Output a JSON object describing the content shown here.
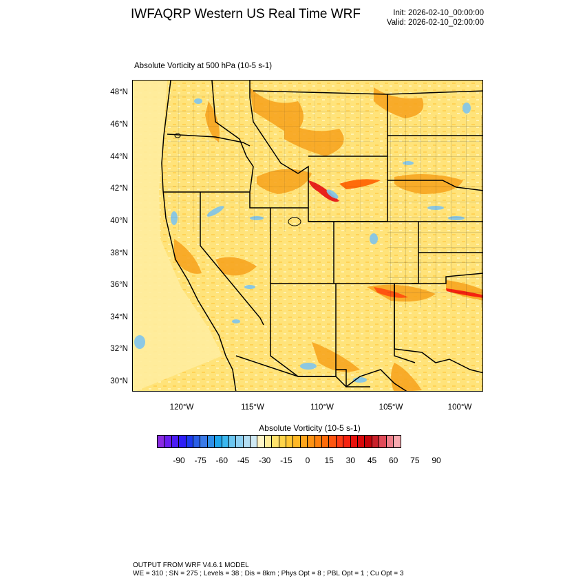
{
  "header": {
    "title": "IWFAQRP Western US Real Time WRF",
    "init": "Init: 2026-02-10_00:00:00",
    "valid": "Valid: 2026-02-10_02:00:00"
  },
  "map": {
    "field_label": "Absolute Vorticity at 500 hPa   (10-5 s-1)",
    "lat_labels": [
      "48°N",
      "46°N",
      "44°N",
      "42°N",
      "40°N",
      "38°N",
      "36°N",
      "34°N",
      "32°N",
      "30°N"
    ],
    "lon_labels": [
      "120°W",
      "115°W",
      "110°W",
      "105°W",
      "100°W"
    ],
    "colors": {
      "background_field": "#ffe88a",
      "positive_features": "#f7a21b",
      "strong_positive": "#e8231c",
      "negative_features": "#7fc4ec",
      "boundary_lines": "#000000"
    }
  },
  "colorbar": {
    "title": "Absolute Vorticity  (10-5 s-1)",
    "labels": [
      "-90",
      "-75",
      "-60",
      "-45",
      "-30",
      "-15",
      "0",
      "15",
      "30",
      "45",
      "60",
      "75",
      "90"
    ],
    "colors": [
      "#8a2be2",
      "#6a1ef0",
      "#4b1cf5",
      "#2e1ef7",
      "#1c3bf0",
      "#2a5fe8",
      "#3a7ae8",
      "#2f8fe8",
      "#1fa6ec",
      "#3bb7ef",
      "#6cc6f0",
      "#8fd1f2",
      "#b3def3",
      "#cfe9f4",
      "#fff5c8",
      "#ffec99",
      "#ffe26b",
      "#ffd54a",
      "#ffc733",
      "#ffb826",
      "#ffa51c",
      "#ff9314",
      "#ff800e",
      "#ff6b0a",
      "#ff5510",
      "#ff3b14",
      "#f52210",
      "#e8120c",
      "#d8080a",
      "#c4040a",
      "#c9202a",
      "#e04a58",
      "#ef7f8a",
      "#f8aab0"
    ]
  },
  "footer": {
    "line1": "OUTPUT FROM WRF V4.6.1 MODEL",
    "line2": "WE = 310 ; SN = 275 ; Levels = 38 ; Dis = 8km ; Phys Opt = 8 ; PBL Opt = 1 ; Cu Opt = 3"
  }
}
